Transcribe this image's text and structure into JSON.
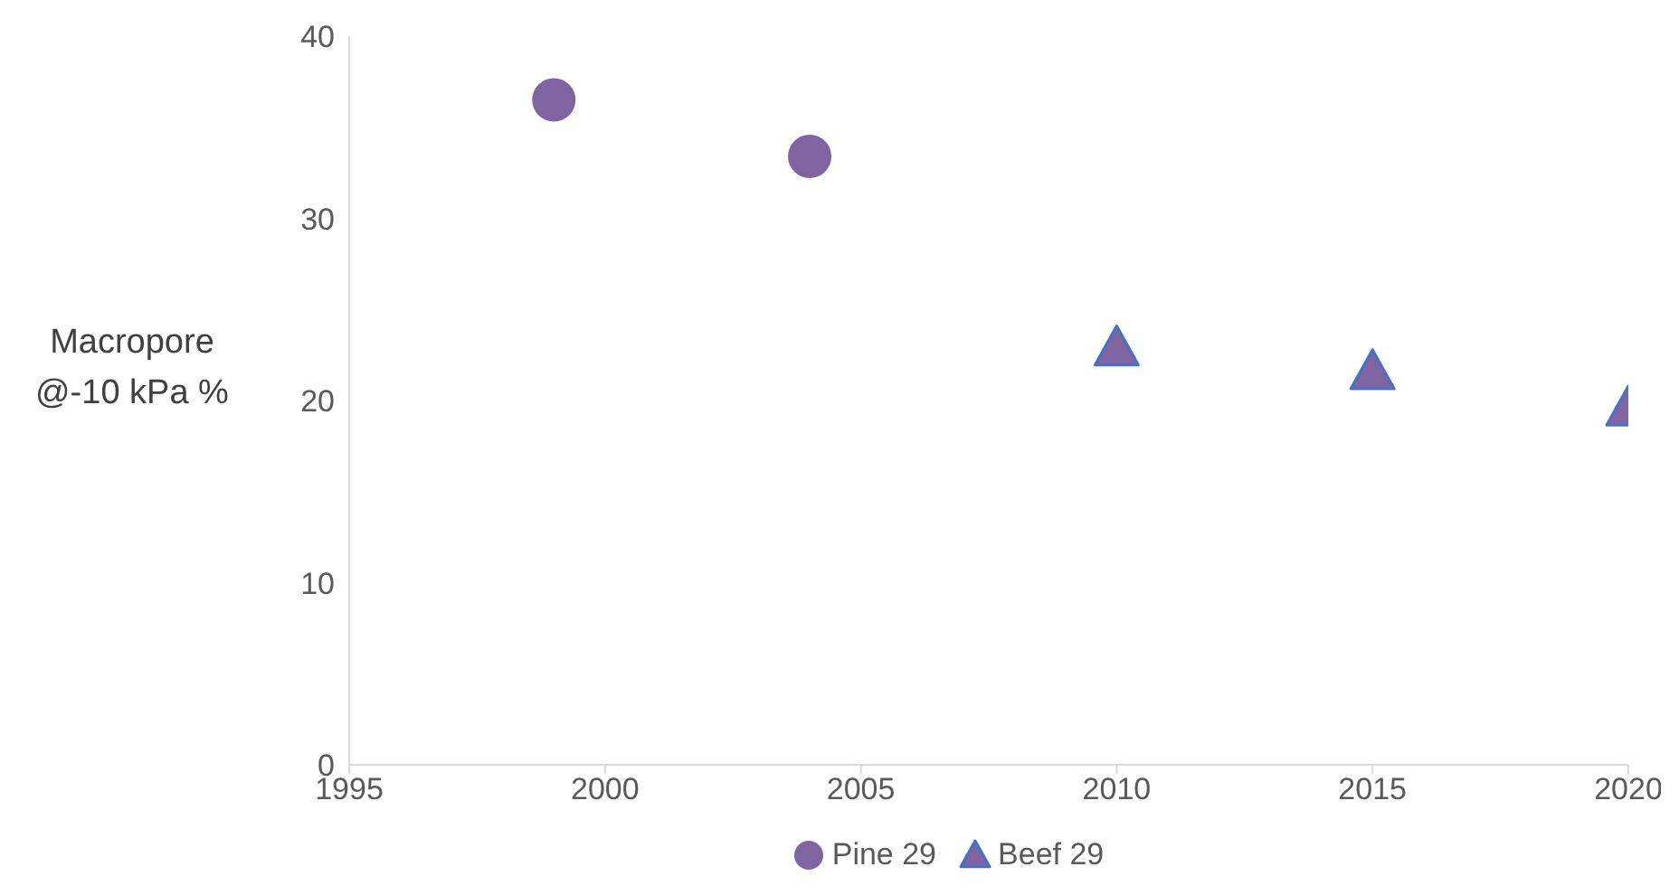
{
  "chart_data": {
    "type": "scatter",
    "ylabel": "Macropore @-10 kPa %",
    "xlim": [
      1995,
      2020
    ],
    "xticks": [
      1995,
      2000,
      2005,
      2010,
      2015,
      2020
    ],
    "ylim": [
      0,
      40
    ],
    "yticks": [
      0,
      10,
      20,
      30,
      40
    ],
    "grid": false,
    "legend": "bottom",
    "series": [
      {
        "name": "Pine 29",
        "color": "#8064a2",
        "marker": "circle",
        "x": [
          1999,
          2004
        ],
        "values": [
          36.5,
          33.4
        ]
      },
      {
        "name": "Beef 29",
        "color": "#8064a2",
        "marker": "triangle",
        "x": [
          2010,
          2015,
          2020
        ],
        "values": [
          22.9,
          21.6,
          19.6
        ]
      }
    ]
  }
}
